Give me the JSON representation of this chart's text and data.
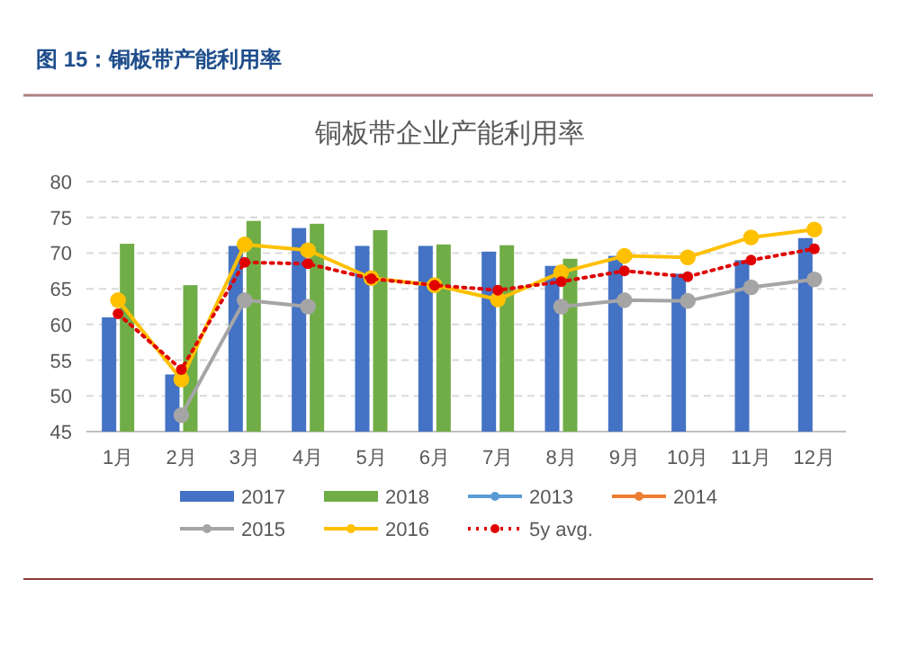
{
  "chart_data": {
    "type": "bar",
    "title": "图 15：铜板带产能利用率",
    "subtitle": "铜板带企业产能利用率",
    "categories": [
      "1月",
      "2月",
      "3月",
      "4月",
      "5月",
      "6月",
      "7月",
      "8月",
      "9月",
      "10月",
      "11月",
      "12月"
    ],
    "ylim": [
      45,
      80
    ],
    "yticks": [
      45,
      50,
      55,
      60,
      65,
      70,
      75,
      80
    ],
    "grid": "y",
    "legend": "bottom",
    "marker": "circle",
    "series": [
      {
        "name": "2017",
        "color": "#4472c4",
        "values": [
          61,
          53,
          71,
          73.5,
          71,
          71,
          70.2,
          68.2,
          69.6,
          67.1,
          69,
          72.1
        ]
      },
      {
        "name": "2018",
        "color": "#70ad47",
        "values": [
          71.3,
          65.5,
          74.5,
          74.1,
          73.2,
          71.2,
          71.1,
          69.2,
          null,
          null,
          null,
          null
        ]
      },
      {
        "name": "2013",
        "type": "line",
        "color": "#5b9bd5",
        "values": [
          null,
          null,
          null,
          null,
          null,
          null,
          null,
          null,
          null,
          null,
          null,
          null
        ]
      },
      {
        "name": "2014",
        "type": "line",
        "color": "#ed7d31",
        "values": [
          null,
          null,
          null,
          null,
          null,
          null,
          null,
          null,
          null,
          null,
          null,
          null
        ]
      },
      {
        "name": "2015",
        "type": "line",
        "color": "#a5a5a5",
        "values": [
          null,
          47.3,
          63.4,
          62.5,
          null,
          null,
          null,
          62.5,
          63.4,
          63.3,
          65.2,
          66.3
        ]
      },
      {
        "name": "2016",
        "type": "line",
        "color": "#ffc000",
        "values": [
          63.4,
          52.3,
          71.2,
          70.4,
          66.5,
          65.5,
          63.5,
          67.3,
          69.6,
          69.4,
          72.2,
          73.3
        ]
      },
      {
        "name": "5y avg.",
        "type": "line",
        "color": "#e00000",
        "line_style": "dotted",
        "values": [
          61.5,
          53.7,
          68.7,
          68.5,
          66.4,
          65.5,
          64.8,
          66,
          67.5,
          66.7,
          69,
          70.6
        ]
      }
    ]
  }
}
